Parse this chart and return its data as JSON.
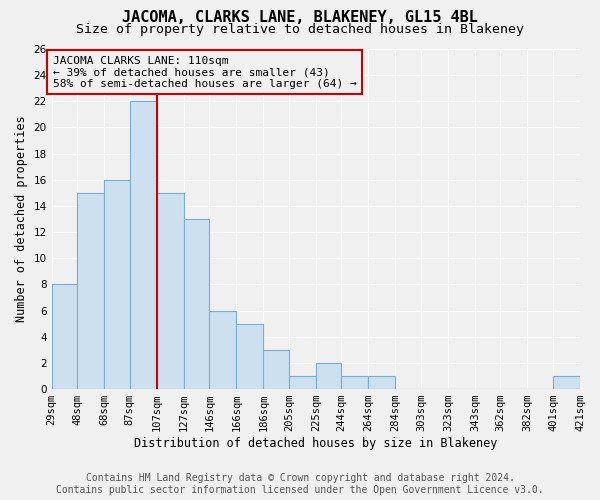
{
  "title": "JACOMA, CLARKS LANE, BLAKENEY, GL15 4BL",
  "subtitle": "Size of property relative to detached houses in Blakeney",
  "xlabel": "Distribution of detached houses by size in Blakeney",
  "ylabel": "Number of detached properties",
  "footer_line1": "Contains HM Land Registry data © Crown copyright and database right 2024.",
  "footer_line2": "Contains public sector information licensed under the Open Government Licence v3.0.",
  "annotation_line1": "JACOMA CLARKS LANE: 110sqm",
  "annotation_line2": "← 39% of detached houses are smaller (43)",
  "annotation_line3": "58% of semi-detached houses are larger (64) →",
  "bar_edges": [
    29,
    48,
    68,
    87,
    107,
    127,
    146,
    166,
    186,
    205,
    225,
    244,
    264,
    284,
    303,
    323,
    343,
    362,
    382,
    401,
    421
  ],
  "bar_heights": [
    8,
    15,
    16,
    22,
    15,
    13,
    6,
    5,
    3,
    1,
    2,
    1,
    1,
    0,
    0,
    0,
    0,
    0,
    0,
    1
  ],
  "bar_color": "#cce0f0",
  "bar_edgecolor": "#7aaed0",
  "property_line_x": 107,
  "property_line_color": "#cc0000",
  "annotation_box_color": "#cc0000",
  "ylim": [
    0,
    26
  ],
  "yticks": [
    0,
    2,
    4,
    6,
    8,
    10,
    12,
    14,
    16,
    18,
    20,
    22,
    24,
    26
  ],
  "xtick_labels": [
    "29sqm",
    "48sqm",
    "68sqm",
    "87sqm",
    "107sqm",
    "127sqm",
    "146sqm",
    "166sqm",
    "186sqm",
    "205sqm",
    "225sqm",
    "244sqm",
    "264sqm",
    "284sqm",
    "303sqm",
    "323sqm",
    "343sqm",
    "362sqm",
    "382sqm",
    "401sqm",
    "421sqm"
  ],
  "background_color": "#f0f0f0",
  "grid_color": "#ffffff",
  "title_fontsize": 11,
  "subtitle_fontsize": 9.5,
  "label_fontsize": 8.5,
  "tick_fontsize": 7.5,
  "annotation_fontsize": 8,
  "footer_fontsize": 7
}
